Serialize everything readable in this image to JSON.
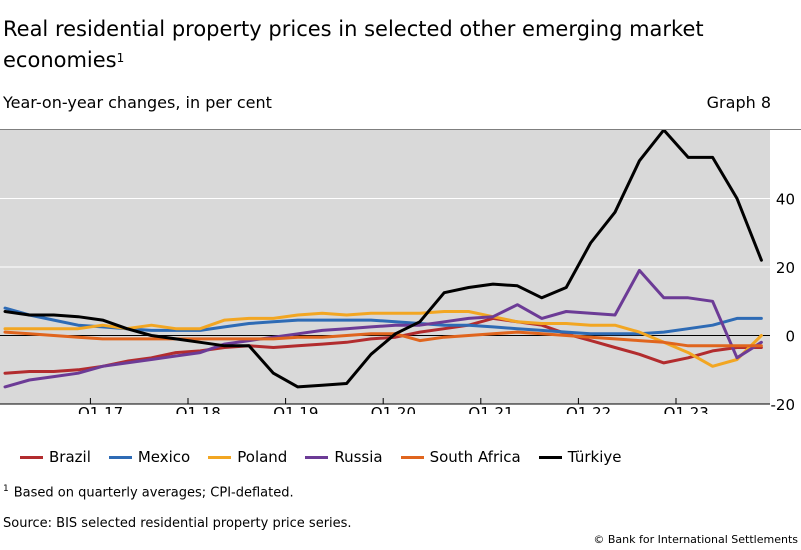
{
  "header": {
    "title": "Real residential property prices in selected other emerging market economies",
    "title_sup": "1",
    "subtitle": "Year-on-year changes, in per cent",
    "graph_no": "Graph 8"
  },
  "footer": {
    "footnote_mark": "1",
    "footnote": "Based on quarterly averages; CPI-deflated.",
    "source": "Source: BIS selected residential property price series.",
    "copyright": "© Bank for International Settlements"
  },
  "chart_data": {
    "type": "line",
    "x_tick_labels": [
      "Q1 17",
      "Q1 18",
      "Q1 19",
      "Q1 20",
      "Q1 21",
      "Q1 22",
      "Q1 23"
    ],
    "y_ticks": [
      -20,
      0,
      20,
      40
    ],
    "ylim": [
      -20,
      60
    ],
    "grid": "horizontal",
    "legend_position": "bottom",
    "plot_background": "#d9d9d9",
    "x": [
      "Q1 16",
      "Q2 16",
      "Q3 16",
      "Q4 16",
      "Q1 17",
      "Q2 17",
      "Q3 17",
      "Q4 17",
      "Q1 18",
      "Q2 18",
      "Q3 18",
      "Q4 18",
      "Q1 19",
      "Q2 19",
      "Q3 19",
      "Q4 19",
      "Q1 20",
      "Q2 20",
      "Q3 20",
      "Q4 20",
      "Q1 21",
      "Q2 21",
      "Q3 21",
      "Q4 21",
      "Q1 22",
      "Q2 22",
      "Q3 22",
      "Q4 22",
      "Q1 23",
      "Q2 23",
      "Q3 23",
      "Q4 23"
    ],
    "series": [
      {
        "name": "Brazil",
        "color": "#b22c2e",
        "values": [
          -11,
          -10.5,
          -10.5,
          -10,
          -9,
          -7.5,
          -6.5,
          -5,
          -4.5,
          -3.5,
          -3,
          -3.5,
          -3,
          -2.5,
          -2,
          -1,
          -0.5,
          1,
          2,
          3,
          5,
          4,
          3,
          0.5,
          -1.5,
          -3.5,
          -5.5,
          -8,
          -6.5,
          -4.5,
          -3.5,
          -3.5
        ]
      },
      {
        "name": "Mexico",
        "color": "#2e6bb5",
        "values": [
          8,
          6,
          4.5,
          3,
          2.5,
          2,
          1.5,
          1.5,
          1.5,
          2.5,
          3.5,
          4,
          4.5,
          4.5,
          4.5,
          4.5,
          4,
          3.5,
          3,
          3,
          2.5,
          2,
          1.5,
          1,
          0.5,
          0.5,
          0.5,
          1,
          2,
          3,
          5,
          5
        ]
      },
      {
        "name": "Poland",
        "color": "#f2a622",
        "values": [
          2,
          2,
          2,
          2,
          3,
          2,
          3,
          2,
          2,
          4.5,
          5,
          5,
          6,
          6.5,
          6,
          6.5,
          6.5,
          6.5,
          7,
          7,
          5.5,
          4,
          3.5,
          3.5,
          3,
          3,
          1,
          -2,
          -5,
          -9,
          -7,
          0
        ]
      },
      {
        "name": "Russia",
        "color": "#6c3b96",
        "values": [
          -15,
          -13,
          -12,
          -11,
          -9,
          -8,
          -7,
          -6,
          -5,
          -2.5,
          -1.5,
          -0.5,
          0.5,
          1.5,
          2,
          2.5,
          3,
          3,
          4,
          5,
          5.5,
          9,
          5,
          7,
          6.5,
          6,
          19,
          11,
          11,
          10,
          -6.5,
          -2
        ]
      },
      {
        "name": "South Africa",
        "color": "#e0651e",
        "values": [
          1,
          0.5,
          0,
          -0.5,
          -1,
          -1,
          -1,
          -1,
          -1,
          -1,
          -1,
          -1,
          -0.5,
          -0.5,
          0,
          0.5,
          0.5,
          -1.5,
          -0.5,
          0,
          0.5,
          1,
          0.5,
          0,
          -0.5,
          -1,
          -1.5,
          -2,
          -3,
          -3,
          -3,
          -3
        ]
      },
      {
        "name": "Türkiye",
        "color": "#000000",
        "values": [
          7,
          6,
          6,
          5.5,
          4.5,
          2,
          0,
          -1,
          -2,
          -3,
          -3,
          -11,
          -15,
          -14.5,
          -14,
          -5.5,
          0.5,
          4,
          12.5,
          14,
          15,
          14.5,
          11,
          14,
          27,
          36,
          51,
          60,
          52,
          52,
          40,
          22
        ]
      }
    ]
  }
}
